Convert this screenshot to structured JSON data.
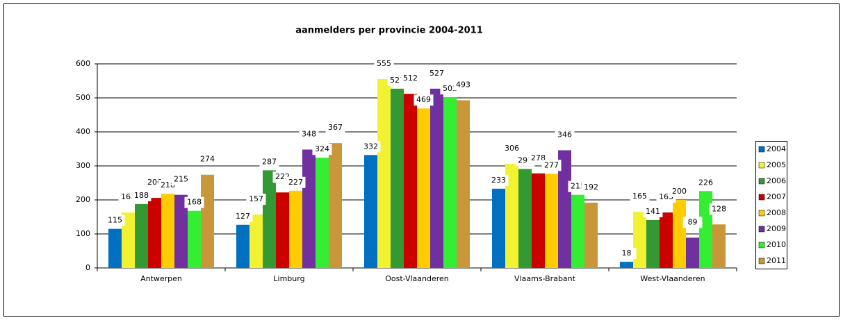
{
  "chart_data": {
    "type": "bar",
    "title": "aanmelders per provincie 2004-2011",
    "categories": [
      "Antwerpen",
      "Limburg",
      "Oost-Vlaanderen",
      "Vlaams-Brabant",
      "West-Vlaanderen"
    ],
    "series": [
      {
        "name": "2004",
        "color": "#0070c0",
        "values": [
          115,
          127,
          332,
          233,
          18
        ]
      },
      {
        "name": "2005",
        "color": "#f2f232",
        "values": [
          163,
          157,
          555,
          306,
          165
        ]
      },
      {
        "name": "2006",
        "color": "#339933",
        "values": [
          188,
          287,
          527,
          291,
          141
        ]
      },
      {
        "name": "2007",
        "color": "#cc0000",
        "values": [
          206,
          222,
          512,
          278,
          163
        ]
      },
      {
        "name": "2008",
        "color": "#ffcc00",
        "values": [
          218,
          227,
          469,
          277,
          200
        ]
      },
      {
        "name": "2009",
        "color": "#7030a0",
        "values": [
          215,
          348,
          527,
          346,
          89
        ]
      },
      {
        "name": "2010",
        "color": "#33ee33",
        "values": [
          168,
          324,
          502,
          215,
          226
        ]
      },
      {
        "name": "2011",
        "color": "#c9973a",
        "values": [
          274,
          367,
          493,
          192,
          128
        ]
      }
    ],
    "ylim": [
      0,
      600
    ],
    "yticks": [
      0,
      100,
      200,
      300,
      400,
      500,
      600
    ],
    "grid": true,
    "legend": "right"
  }
}
